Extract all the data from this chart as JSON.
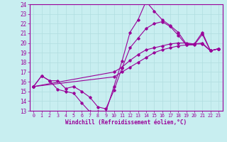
{
  "xlabel": "Windchill (Refroidissement éolien,°C)",
  "bg_color": "#c8eef0",
  "line_color": "#990099",
  "grid_color": "#b0dde0",
  "xlim": [
    -0.5,
    23.5
  ],
  "ylim": [
    13,
    24
  ],
  "xticks": [
    0,
    1,
    2,
    3,
    4,
    5,
    6,
    7,
    8,
    9,
    10,
    11,
    12,
    13,
    14,
    15,
    16,
    17,
    18,
    19,
    20,
    21,
    22,
    23
  ],
  "yticks": [
    13,
    14,
    15,
    16,
    17,
    18,
    19,
    20,
    21,
    22,
    23,
    24
  ],
  "lines": [
    {
      "x": [
        0,
        1,
        2,
        3,
        4,
        5,
        6,
        7,
        8,
        9,
        10,
        11,
        12,
        13,
        14,
        15,
        16,
        17,
        18,
        19,
        20,
        21,
        22,
        23
      ],
      "y": [
        15.5,
        16.6,
        16.1,
        15.2,
        15.0,
        14.8,
        13.8,
        12.9,
        12.9,
        12.9,
        15.5,
        18.1,
        21.1,
        22.4,
        24.3,
        23.3,
        22.4,
        21.8,
        21.1,
        19.9,
        19.9,
        21.1,
        19.2,
        19.4
      ]
    },
    {
      "x": [
        0,
        10,
        11,
        12,
        13,
        14,
        15,
        16,
        17,
        18,
        19,
        20,
        21,
        22,
        23
      ],
      "y": [
        15.5,
        16.5,
        17.0,
        17.5,
        18.0,
        18.5,
        19.0,
        19.3,
        19.5,
        19.7,
        19.8,
        19.9,
        20.0,
        19.2,
        19.4
      ]
    },
    {
      "x": [
        0,
        10,
        11,
        12,
        13,
        14,
        15,
        16,
        17,
        18,
        19,
        20,
        21,
        22,
        23
      ],
      "y": [
        15.5,
        17.0,
        17.5,
        18.2,
        18.8,
        19.3,
        19.5,
        19.7,
        19.9,
        20.0,
        20.0,
        19.9,
        19.9,
        19.2,
        19.4
      ]
    },
    {
      "x": [
        0,
        1,
        2,
        3,
        4,
        5,
        6,
        7,
        8,
        9,
        10,
        11,
        12,
        13,
        14,
        15,
        16,
        17,
        18,
        19,
        20,
        21,
        22,
        23
      ],
      "y": [
        15.5,
        16.6,
        16.1,
        16.1,
        15.3,
        15.5,
        15.0,
        14.4,
        13.4,
        13.2,
        15.1,
        17.4,
        19.5,
        20.5,
        21.5,
        22.0,
        22.2,
        21.7,
        20.8,
        19.8,
        19.8,
        20.9,
        19.2,
        19.4
      ]
    }
  ]
}
